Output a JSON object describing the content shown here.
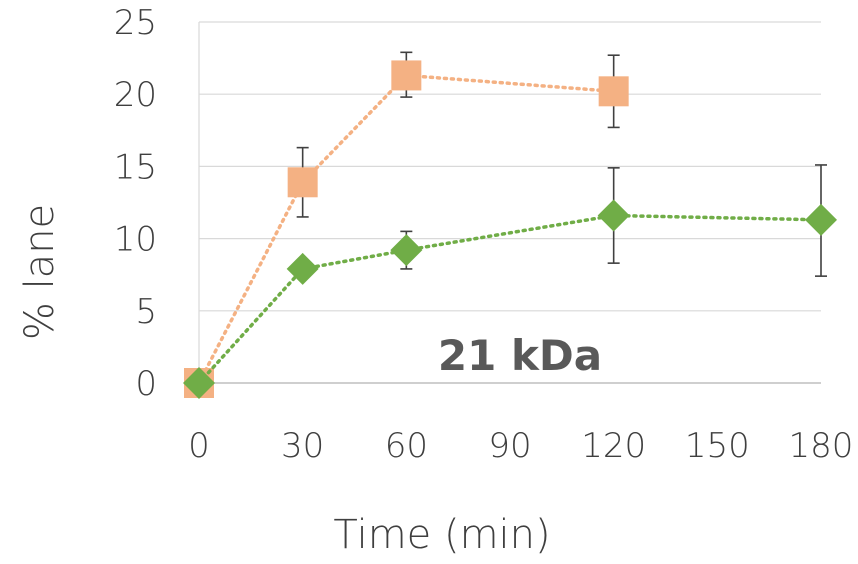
{
  "chart_data": {
    "type": "line",
    "title": "",
    "xlabel": "Time (min)",
    "ylabel": "% lane",
    "annotation": "21 kDa",
    "xlim": [
      0,
      180
    ],
    "ylim": [
      0,
      25
    ],
    "xticks": [
      0,
      30,
      60,
      90,
      120,
      150,
      180
    ],
    "yticks": [
      0,
      5,
      10,
      15,
      20,
      25
    ],
    "x_tick_labels": [
      "0",
      "30",
      "60",
      "90",
      "120",
      "150",
      "180"
    ],
    "y_tick_labels": [
      "0",
      "5",
      "10",
      "15",
      "20",
      "25"
    ],
    "grid": true,
    "legend": "none",
    "series": [
      {
        "color": "#f4b183",
        "marker": "square",
        "line_style": "dotted",
        "points": [
          {
            "x": 0,
            "y": 0
          },
          {
            "x": 30,
            "y": 13.9,
            "err_low": 11.5,
            "err_high": 16.3
          },
          {
            "x": 60,
            "y": 21.3,
            "err_low": 19.8,
            "err_high": 22.9
          },
          {
            "x": 120,
            "y": 20.2,
            "err_low": 17.7,
            "err_high": 22.7
          }
        ]
      },
      {
        "color": "#70ad47",
        "marker": "diamond",
        "line_style": "dotted",
        "points": [
          {
            "x": 0,
            "y": 0
          },
          {
            "x": 30,
            "y": 7.9,
            "err_low": 7.9,
            "err_high": 8.5
          },
          {
            "x": 60,
            "y": 9.2,
            "err_low": 7.9,
            "err_high": 10.5
          },
          {
            "x": 120,
            "y": 11.6,
            "err_low": 8.3,
            "err_high": 14.9
          },
          {
            "x": 180,
            "y": 11.3,
            "err_low": 7.4,
            "err_high": 15.1
          }
        ]
      }
    ]
  }
}
